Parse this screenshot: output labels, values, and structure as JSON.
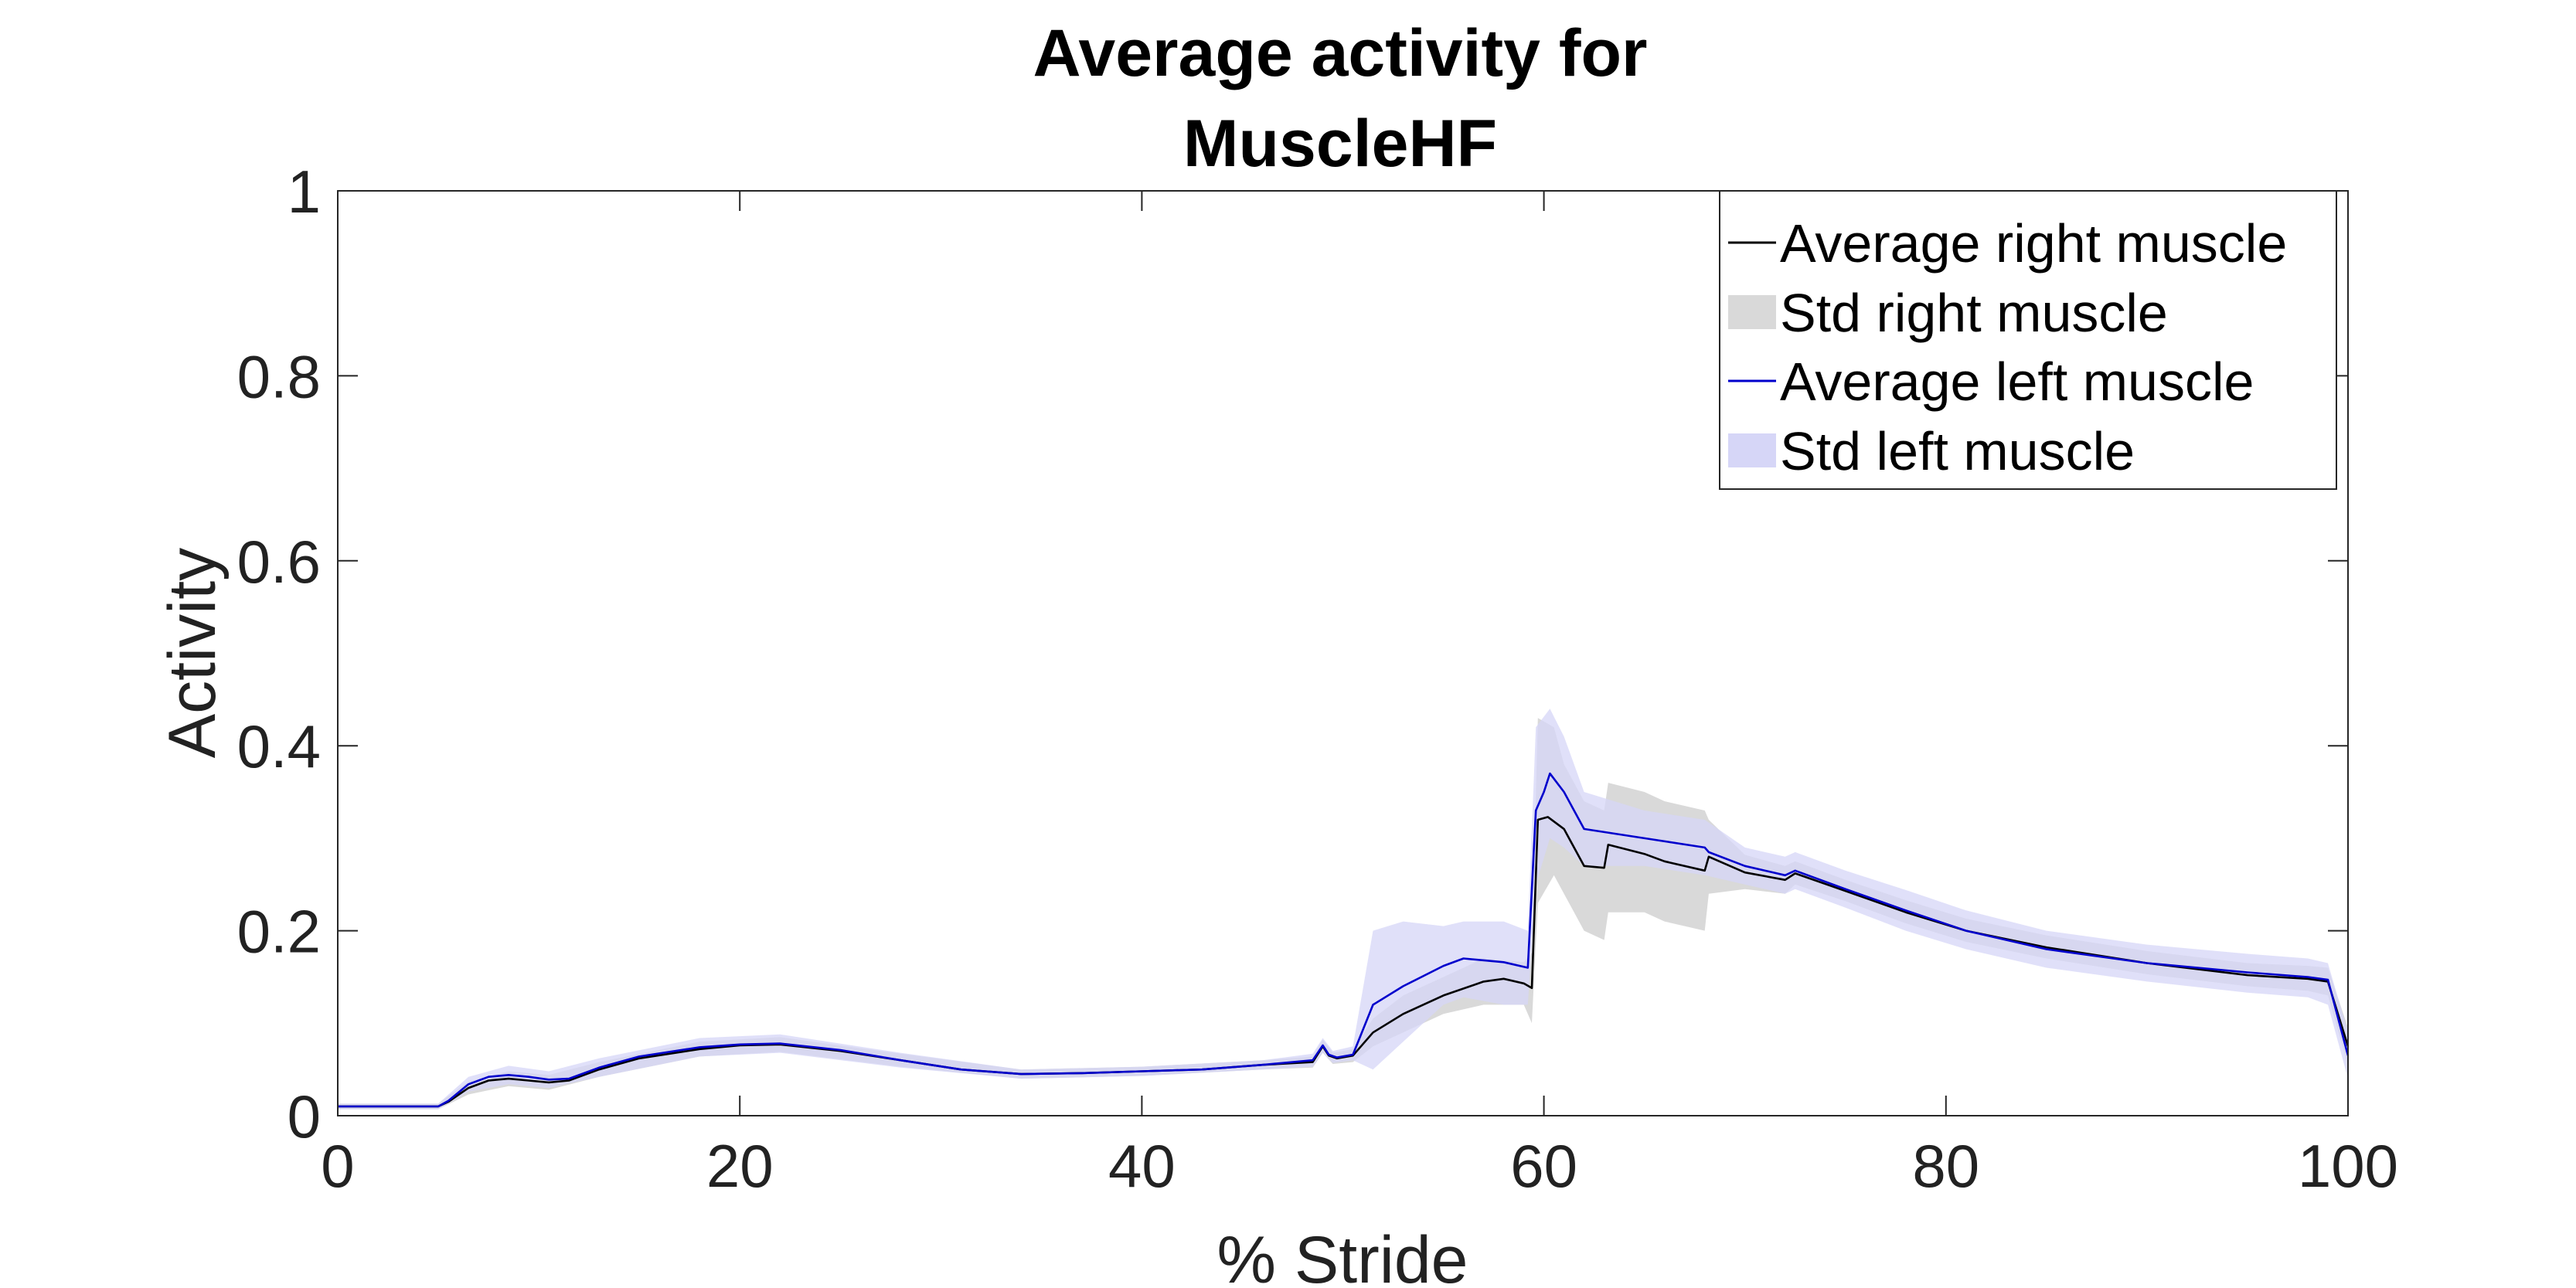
{
  "chart_data": {
    "type": "line",
    "title_lines": [
      "Average activity for",
      "MuscleHF"
    ],
    "xlabel": "% Stride",
    "ylabel": "Activity",
    "xlim": [
      0,
      100
    ],
    "ylim": [
      0,
      1
    ],
    "x_ticks": [
      0,
      20,
      40,
      60,
      80,
      100
    ],
    "y_ticks": [
      0,
      0.2,
      0.4,
      0.6,
      0.8,
      1
    ],
    "grid": false,
    "legend_position": "top-right",
    "colors": {
      "right_line": "#000000",
      "right_band": "#d9d9d9",
      "left_line": "#0000cc",
      "left_band": "#d6d6f7",
      "axis": "#262626"
    },
    "series": [
      {
        "name": "Average right muscle",
        "kind": "line",
        "points": [
          [
            0,
            0.01
          ],
          [
            5,
            0.01
          ],
          [
            5.5,
            0.015
          ],
          [
            6.5,
            0.03
          ],
          [
            7.5,
            0.038
          ],
          [
            8.5,
            0.04
          ],
          [
            9.5,
            0.038
          ],
          [
            10.5,
            0.036
          ],
          [
            11.5,
            0.038
          ],
          [
            13,
            0.05
          ],
          [
            15,
            0.062
          ],
          [
            18,
            0.072
          ],
          [
            20,
            0.076
          ],
          [
            22,
            0.077
          ],
          [
            25,
            0.07
          ],
          [
            28,
            0.06
          ],
          [
            31,
            0.05
          ],
          [
            34,
            0.045
          ],
          [
            37,
            0.046
          ],
          [
            40,
            0.048
          ],
          [
            43,
            0.05
          ],
          [
            46,
            0.055
          ],
          [
            48.5,
            0.058
          ],
          [
            49,
            0.075
          ],
          [
            49.3,
            0.065
          ],
          [
            49.7,
            0.062
          ],
          [
            50.5,
            0.065
          ],
          [
            51.5,
            0.09
          ],
          [
            53,
            0.11
          ],
          [
            55,
            0.13
          ],
          [
            57,
            0.145
          ],
          [
            58,
            0.148
          ],
          [
            59,
            0.143
          ],
          [
            59.4,
            0.138
          ],
          [
            59.7,
            0.32
          ],
          [
            60.2,
            0.323
          ],
          [
            61,
            0.31
          ],
          [
            62,
            0.27
          ],
          [
            63,
            0.268
          ],
          [
            63.2,
            0.293
          ],
          [
            65,
            0.283
          ],
          [
            66,
            0.275
          ],
          [
            68,
            0.265
          ],
          [
            68.2,
            0.28
          ],
          [
            70,
            0.263
          ],
          [
            72,
            0.255
          ],
          [
            72.5,
            0.262
          ],
          [
            75,
            0.243
          ],
          [
            78,
            0.22
          ],
          [
            81,
            0.2
          ],
          [
            85,
            0.182
          ],
          [
            90,
            0.165
          ],
          [
            95,
            0.152
          ],
          [
            98,
            0.148
          ],
          [
            99,
            0.145
          ],
          [
            100,
            0.075
          ]
        ]
      },
      {
        "name": "Std right muscle",
        "kind": "band",
        "points": [
          [
            0,
            0.007,
            0.013
          ],
          [
            5,
            0.007,
            0.013
          ],
          [
            6.5,
            0.023,
            0.037
          ],
          [
            8.5,
            0.032,
            0.048
          ],
          [
            10.5,
            0.028,
            0.044
          ],
          [
            13,
            0.042,
            0.058
          ],
          [
            18,
            0.064,
            0.08
          ],
          [
            22,
            0.069,
            0.085
          ],
          [
            28,
            0.053,
            0.067
          ],
          [
            34,
            0.04,
            0.05
          ],
          [
            40,
            0.043,
            0.053
          ],
          [
            46,
            0.05,
            0.06
          ],
          [
            48.5,
            0.052,
            0.064
          ],
          [
            49,
            0.068,
            0.082
          ],
          [
            49.5,
            0.056,
            0.068
          ],
          [
            50.5,
            0.058,
            0.072
          ],
          [
            51.5,
            0.075,
            0.105
          ],
          [
            53,
            0.09,
            0.13
          ],
          [
            55,
            0.11,
            0.15
          ],
          [
            57,
            0.12,
            0.17
          ],
          [
            59,
            0.12,
            0.166
          ],
          [
            59.4,
            0.1,
            0.176
          ],
          [
            59.7,
            0.23,
            0.43
          ],
          [
            60.5,
            0.26,
            0.42
          ],
          [
            61,
            0.24,
            0.38
          ],
          [
            62,
            0.2,
            0.34
          ],
          [
            63,
            0.19,
            0.33
          ],
          [
            63.2,
            0.22,
            0.36
          ],
          [
            65,
            0.22,
            0.35
          ],
          [
            66,
            0.21,
            0.34
          ],
          [
            68,
            0.2,
            0.33
          ],
          [
            68.2,
            0.24,
            0.32
          ],
          [
            70,
            0.245,
            0.282
          ],
          [
            72,
            0.24,
            0.27
          ],
          [
            72.5,
            0.25,
            0.275
          ],
          [
            75,
            0.232,
            0.255
          ],
          [
            78,
            0.208,
            0.233
          ],
          [
            81,
            0.188,
            0.213
          ],
          [
            85,
            0.17,
            0.195
          ],
          [
            90,
            0.153,
            0.178
          ],
          [
            95,
            0.14,
            0.165
          ],
          [
            98,
            0.135,
            0.162
          ],
          [
            99,
            0.13,
            0.16
          ],
          [
            100,
            0.055,
            0.095
          ]
        ]
      },
      {
        "name": "Average left muscle",
        "kind": "line",
        "points": [
          [
            0,
            0.01
          ],
          [
            5,
            0.01
          ],
          [
            5.5,
            0.016
          ],
          [
            6.5,
            0.034
          ],
          [
            7.5,
            0.042
          ],
          [
            8.5,
            0.044
          ],
          [
            9.5,
            0.042
          ],
          [
            10.5,
            0.039
          ],
          [
            11.5,
            0.04
          ],
          [
            13,
            0.052
          ],
          [
            15,
            0.064
          ],
          [
            18,
            0.074
          ],
          [
            20,
            0.077
          ],
          [
            22,
            0.078
          ],
          [
            25,
            0.071
          ],
          [
            28,
            0.06
          ],
          [
            31,
            0.05
          ],
          [
            34,
            0.045
          ],
          [
            37,
            0.046
          ],
          [
            40,
            0.048
          ],
          [
            43,
            0.05
          ],
          [
            46,
            0.055
          ],
          [
            48.5,
            0.06
          ],
          [
            49,
            0.076
          ],
          [
            49.3,
            0.066
          ],
          [
            49.7,
            0.063
          ],
          [
            50.5,
            0.066
          ],
          [
            51.5,
            0.12
          ],
          [
            53,
            0.14
          ],
          [
            55,
            0.162
          ],
          [
            56,
            0.17
          ],
          [
            58,
            0.166
          ],
          [
            59.2,
            0.16
          ],
          [
            59.6,
            0.33
          ],
          [
            60,
            0.35
          ],
          [
            60.3,
            0.37
          ],
          [
            61,
            0.35
          ],
          [
            62,
            0.31
          ],
          [
            65,
            0.3
          ],
          [
            68,
            0.29
          ],
          [
            68.2,
            0.285
          ],
          [
            70,
            0.27
          ],
          [
            72,
            0.26
          ],
          [
            72.5,
            0.265
          ],
          [
            75,
            0.245
          ],
          [
            78,
            0.222
          ],
          [
            81,
            0.2
          ],
          [
            85,
            0.18
          ],
          [
            90,
            0.165
          ],
          [
            95,
            0.155
          ],
          [
            98,
            0.15
          ],
          [
            99,
            0.147
          ],
          [
            100,
            0.065
          ]
        ]
      },
      {
        "name": "Std left muscle",
        "kind": "band",
        "points": [
          [
            0,
            0.007,
            0.013
          ],
          [
            5,
            0.007,
            0.013
          ],
          [
            6.5,
            0.026,
            0.042
          ],
          [
            8.5,
            0.034,
            0.054
          ],
          [
            10.5,
            0.03,
            0.048
          ],
          [
            13,
            0.042,
            0.062
          ],
          [
            18,
            0.064,
            0.084
          ],
          [
            22,
            0.068,
            0.088
          ],
          [
            28,
            0.052,
            0.068
          ],
          [
            34,
            0.04,
            0.05
          ],
          [
            40,
            0.043,
            0.053
          ],
          [
            46,
            0.05,
            0.06
          ],
          [
            48.5,
            0.053,
            0.067
          ],
          [
            49,
            0.068,
            0.084
          ],
          [
            49.5,
            0.057,
            0.07
          ],
          [
            50.5,
            0.06,
            0.075
          ],
          [
            51.5,
            0.05,
            0.2
          ],
          [
            53,
            0.08,
            0.21
          ],
          [
            55,
            0.12,
            0.205
          ],
          [
            56,
            0.128,
            0.21
          ],
          [
            58,
            0.12,
            0.21
          ],
          [
            59.2,
            0.12,
            0.2
          ],
          [
            59.6,
            0.25,
            0.42
          ],
          [
            60.3,
            0.3,
            0.44
          ],
          [
            61,
            0.29,
            0.41
          ],
          [
            62,
            0.27,
            0.35
          ],
          [
            65,
            0.27,
            0.33
          ],
          [
            68,
            0.26,
            0.32
          ],
          [
            70,
            0.25,
            0.29
          ],
          [
            72,
            0.24,
            0.28
          ],
          [
            72.5,
            0.245,
            0.285
          ],
          [
            75,
            0.225,
            0.265
          ],
          [
            78,
            0.2,
            0.244
          ],
          [
            81,
            0.18,
            0.222
          ],
          [
            85,
            0.16,
            0.2
          ],
          [
            90,
            0.145,
            0.185
          ],
          [
            95,
            0.133,
            0.175
          ],
          [
            98,
            0.128,
            0.17
          ],
          [
            99,
            0.12,
            0.165
          ],
          [
            100,
            0.04,
            0.09
          ]
        ]
      }
    ]
  }
}
